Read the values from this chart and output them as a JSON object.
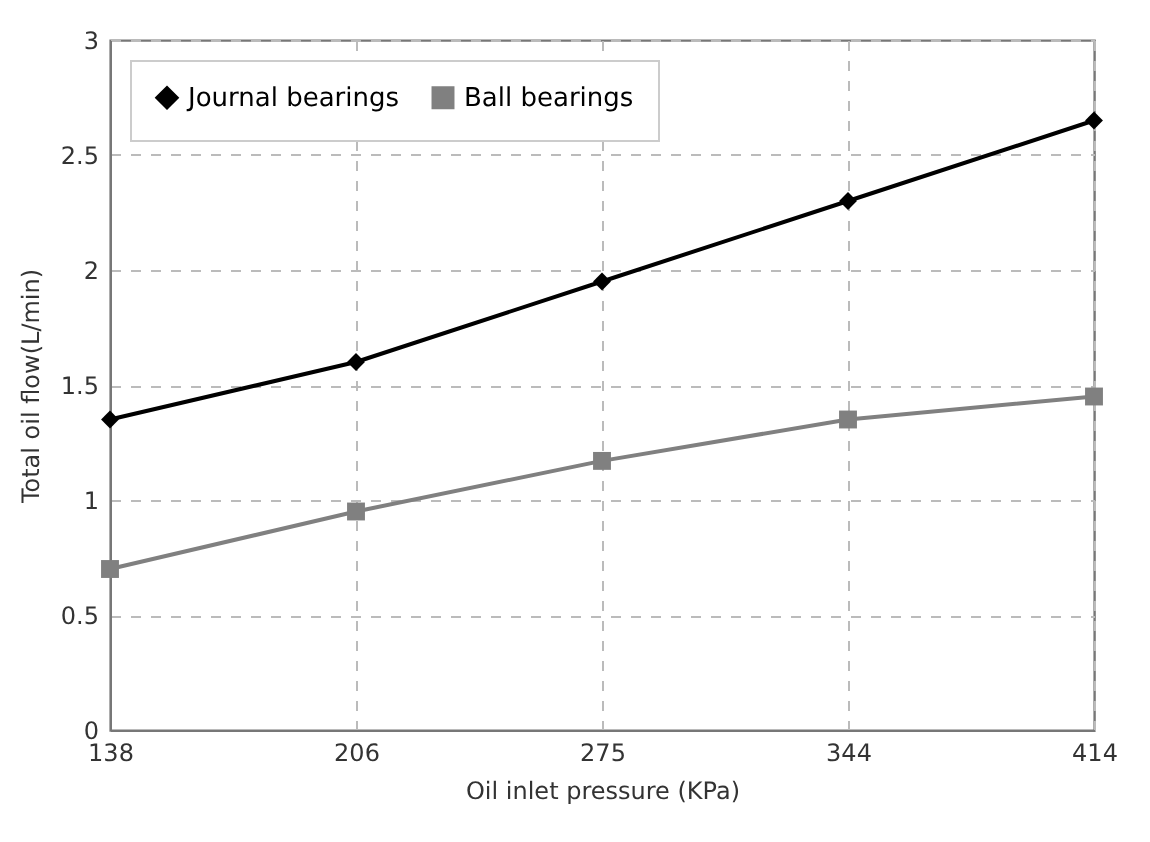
{
  "chart_data": {
    "type": "line",
    "xlabel": "Oil inlet pressure (KPa)",
    "ylabel": "Total oil flow(L/min)",
    "categories": [
      "138",
      "206",
      "275",
      "344",
      "414"
    ],
    "series": [
      {
        "name": "Journal bearings",
        "color": "#000000",
        "marker": "diamond",
        "values": [
          1.35,
          1.6,
          1.95,
          2.3,
          2.65
        ]
      },
      {
        "name": "Ball bearings",
        "color": "#808080",
        "marker": "square",
        "values": [
          0.7,
          0.95,
          1.17,
          1.35,
          1.45
        ]
      }
    ],
    "ylim": [
      0,
      3
    ],
    "yticks": [
      0,
      0.5,
      1,
      1.5,
      2,
      2.5,
      3
    ],
    "grid": true,
    "legend": "top left"
  }
}
